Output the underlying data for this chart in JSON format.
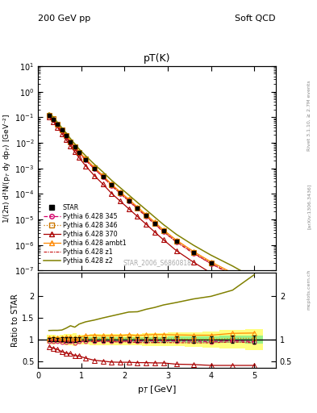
{
  "title_top_left": "200 GeV pp",
  "title_top_right": "Soft QCD",
  "plot_title": "pT(K)",
  "xlabel": "p$_T$ [GeV]",
  "ylabel_main": "1/(2π) d²N/(p$_T$ dy dp$_T$) [GeV⁻²]",
  "ylabel_ratio": "Ratio to STAR",
  "watermark": "STAR_2006_S6860818",
  "right_label": "Rivet 3.1.10, ≥ 2.7M events",
  "arxiv_label": "[arXiv:1306.3436]",
  "mcplots_label": "mcplots.cern.ch",
  "star_pt": [
    0.25,
    0.35,
    0.45,
    0.55,
    0.65,
    0.75,
    0.85,
    0.95,
    1.1,
    1.3,
    1.5,
    1.7,
    1.9,
    2.1,
    2.3,
    2.5,
    2.7,
    2.9,
    3.2,
    3.6,
    4.0,
    4.5,
    5.0
  ],
  "star_y": [
    0.12,
    0.085,
    0.052,
    0.032,
    0.019,
    0.011,
    0.007,
    0.0042,
    0.0022,
    0.001,
    0.00048,
    0.00022,
    0.00011,
    5.5e-05,
    2.8e-05,
    1.4e-05,
    7e-06,
    3.5e-06,
    1.4e-06,
    5e-07,
    2e-07,
    7e-08,
    2e-08
  ],
  "star_yerr": [
    0.005,
    0.004,
    0.002,
    0.0015,
    0.001,
    0.0006,
    0.0004,
    0.0002,
    0.0001,
    5e-05,
    2.5e-05,
    1.2e-05,
    6e-06,
    3e-06,
    1.5e-06,
    8e-07,
    4e-07,
    2e-07,
    9e-08,
    3.5e-08,
    1.5e-08,
    6e-09,
    2e-09
  ],
  "p345_pt": [
    0.25,
    0.35,
    0.45,
    0.55,
    0.65,
    0.75,
    0.85,
    0.95,
    1.1,
    1.3,
    1.5,
    1.7,
    1.9,
    2.1,
    2.3,
    2.5,
    2.7,
    2.9,
    3.2,
    3.6,
    4.0,
    4.5,
    5.0
  ],
  "p345_y": [
    0.115,
    0.082,
    0.05,
    0.03,
    0.018,
    0.0105,
    0.0065,
    0.004,
    0.0021,
    0.00096,
    0.00046,
    0.00021,
    0.000105,
    5.3e-05,
    2.7e-05,
    1.35e-05,
    6.8e-06,
    3.4e-06,
    1.35e-06,
    4.8e-07,
    1.9e-07,
    6.8e-08,
    1.9e-08
  ],
  "p346_pt": [
    0.25,
    0.35,
    0.45,
    0.55,
    0.65,
    0.75,
    0.85,
    0.95,
    1.1,
    1.3,
    1.5,
    1.7,
    1.9,
    2.1,
    2.3,
    2.5,
    2.7,
    2.9,
    3.2,
    3.6,
    4.0,
    4.5,
    5.0
  ],
  "p346_y": [
    0.122,
    0.087,
    0.053,
    0.032,
    0.019,
    0.011,
    0.0068,
    0.0043,
    0.00225,
    0.00102,
    0.00049,
    0.000222,
    0.000112,
    5.7e-05,
    2.85e-05,
    1.42e-05,
    7.1e-06,
    3.55e-06,
    1.42e-06,
    5e-07,
    2e-07,
    7.2e-08,
    2.05e-08
  ],
  "p370_pt": [
    0.25,
    0.35,
    0.45,
    0.55,
    0.65,
    0.75,
    0.85,
    0.95,
    1.1,
    1.3,
    1.5,
    1.7,
    1.9,
    2.1,
    2.3,
    2.5,
    2.7,
    2.9,
    3.2,
    3.6,
    4.0,
    4.5,
    5.0
  ],
  "p370_y": [
    0.1,
    0.068,
    0.04,
    0.023,
    0.013,
    0.0074,
    0.0044,
    0.0026,
    0.00125,
    0.00052,
    0.00024,
    0.000105,
    5.2e-05,
    2.6e-05,
    1.3e-05,
    6.5e-06,
    3.2e-06,
    1.6e-06,
    6e-07,
    2.1e-07,
    8e-08,
    2.8e-08,
    8e-09
  ],
  "pambt1_pt": [
    0.25,
    0.35,
    0.45,
    0.55,
    0.65,
    0.75,
    0.85,
    0.95,
    1.1,
    1.3,
    1.5,
    1.7,
    1.9,
    2.1,
    2.3,
    2.5,
    2.7,
    2.9,
    3.2,
    3.6,
    4.0,
    4.5,
    5.0
  ],
  "pambt1_y": [
    0.125,
    0.088,
    0.054,
    0.033,
    0.02,
    0.0116,
    0.0072,
    0.0044,
    0.0024,
    0.0011,
    0.00052,
    0.00024,
    0.00012,
    6.1e-05,
    3.05e-05,
    1.55e-05,
    7.8e-06,
    3.9e-06,
    1.55e-06,
    5.5e-07,
    2.2e-07,
    8e-08,
    2.3e-08
  ],
  "pz1_pt": [
    0.25,
    0.35,
    0.45,
    0.55,
    0.65,
    0.75,
    0.85,
    0.95,
    1.1,
    1.3,
    1.5,
    1.7,
    1.9,
    2.1,
    2.3,
    2.5,
    2.7,
    2.9,
    3.2,
    3.6,
    4.0,
    4.5,
    5.0
  ],
  "pz1_y": [
    0.116,
    0.083,
    0.05,
    0.03,
    0.0182,
    0.0106,
    0.0065,
    0.004,
    0.0021,
    0.00095,
    0.00046,
    0.000208,
    0.000104,
    5.2e-05,
    2.6e-05,
    1.3e-05,
    6.5e-06,
    3.25e-06,
    1.3e-06,
    4.6e-07,
    1.85e-07,
    6.6e-08,
    1.85e-08
  ],
  "pz2_pt": [
    0.25,
    0.35,
    0.45,
    0.55,
    0.65,
    0.75,
    0.85,
    0.95,
    1.1,
    1.3,
    1.5,
    1.7,
    1.9,
    2.1,
    2.3,
    2.5,
    2.7,
    2.9,
    3.2,
    3.6,
    4.0,
    4.5,
    5.0
  ],
  "pz2_y": [
    0.145,
    0.103,
    0.063,
    0.039,
    0.024,
    0.0145,
    0.009,
    0.0057,
    0.0031,
    0.00145,
    0.00072,
    0.00034,
    0.000175,
    9e-05,
    4.6e-05,
    2.38e-05,
    1.22e-05,
    6.3e-06,
    2.6e-06,
    9.7e-07,
    4e-07,
    1.5e-07,
    5e-08
  ],
  "colors": {
    "star": "#000000",
    "p345": "#d4006a",
    "p346": "#cc7700",
    "p370": "#aa0000",
    "pambt1": "#ff8800",
    "pz1": "#cc2222",
    "pz2": "#808000"
  },
  "band_yellow_low": 0.7,
  "band_yellow_high": 1.55,
  "band_green_low": 0.87,
  "band_green_high": 1.13,
  "ylim_main": [
    1e-07,
    10
  ],
  "ylim_ratio": [
    0.35,
    2.55
  ],
  "xlim": [
    0.0,
    5.5
  ]
}
